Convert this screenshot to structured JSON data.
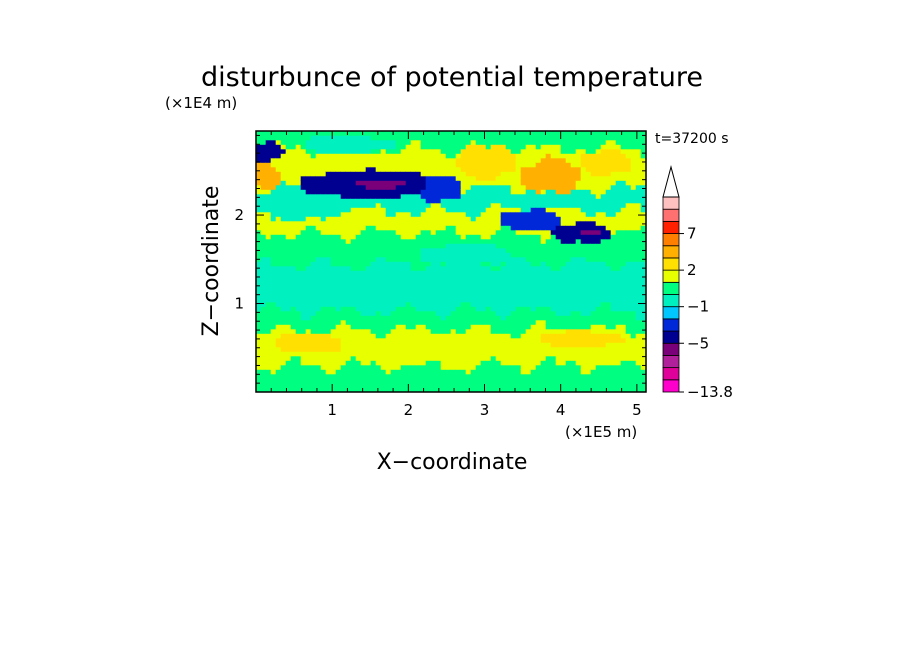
{
  "chart_data": {
    "type": "heatmap",
    "title": "disturbunce of potential temperature",
    "xlabel": "X−coordinate",
    "ylabel": "Z−coordinate",
    "x_unit": "(×1E5 m)",
    "y_unit": "(×1E4 m)",
    "time_label": "t=37200 s",
    "xlim": [
      0,
      5.12
    ],
    "ylim": [
      0,
      2.95
    ],
    "x_ticks": [
      "1",
      "2",
      "3",
      "4",
      "5"
    ],
    "x_tick_values": [
      1,
      2,
      3,
      4,
      5
    ],
    "y_ticks": [
      "1",
      "2"
    ],
    "y_tick_values": [
      1,
      2
    ],
    "colorbar": {
      "labels": [
        "7",
        "2",
        "−1",
        "−5",
        "−13.8"
      ],
      "levels": [
        -13.8,
        -11,
        -9,
        -7,
        -5,
        -3,
        -2,
        -1,
        0,
        1,
        2,
        3,
        5,
        7,
        9,
        11
      ],
      "colors": [
        "#ff00cc",
        "#e0009a",
        "#b0209a",
        "#7a007a",
        "#000090",
        "#0028d8",
        "#00c8ff",
        "#00f0c0",
        "#00ff80",
        "#e8ff00",
        "#ffe000",
        "#ffb000",
        "#ff8000",
        "#ff2000",
        "#ff7070",
        "#ffc0c0"
      ],
      "extend": "max"
    },
    "layers": [
      {
        "z": [
          0.0,
          0.3
        ],
        "value": 0.5
      },
      {
        "z": [
          0.3,
          0.7
        ],
        "value": 1.6
      },
      {
        "z": [
          0.7,
          0.92
        ],
        "value": 0.5
      },
      {
        "z": [
          0.92,
          1.45
        ],
        "value": -0.4
      },
      {
        "z": [
          1.45,
          1.8
        ],
        "value": 0.5
      },
      {
        "z": [
          1.8,
          2.05
        ],
        "value": 1.6
      },
      {
        "z": [
          2.05,
          2.3
        ],
        "value": -0.4
      },
      {
        "z": [
          2.3,
          2.75
        ],
        "value": 1.6
      },
      {
        "z": [
          2.75,
          2.95
        ],
        "value": 0.5
      }
    ],
    "features": [
      {
        "x": 1.5,
        "z": 2.35,
        "rx": 0.9,
        "rz": 0.16,
        "value": -4.2
      },
      {
        "x": 1.6,
        "z": 2.35,
        "rx": 0.55,
        "rz": 0.09,
        "value": -6.0
      },
      {
        "x": 0.15,
        "z": 2.72,
        "rx": 0.2,
        "rz": 0.12,
        "value": -4.2
      },
      {
        "x": 4.3,
        "z": 1.8,
        "rx": 0.4,
        "rz": 0.11,
        "value": -4.2
      },
      {
        "x": 4.4,
        "z": 1.8,
        "rx": 0.2,
        "rz": 0.06,
        "value": -6.0
      },
      {
        "x": 3.6,
        "z": 1.95,
        "rx": 0.4,
        "rz": 0.12,
        "value": -2.5
      },
      {
        "x": 0.1,
        "z": 2.45,
        "rx": 0.25,
        "rz": 0.14,
        "value": 4.0
      },
      {
        "x": 3.9,
        "z": 2.45,
        "rx": 0.4,
        "rz": 0.2,
        "value": 4.0
      },
      {
        "x": 4.6,
        "z": 2.6,
        "rx": 0.3,
        "rz": 0.15,
        "value": 2.5
      },
      {
        "x": 2.4,
        "z": 2.3,
        "rx": 0.3,
        "rz": 0.15,
        "value": -2.5
      },
      {
        "x": 1.2,
        "z": 2.8,
        "rx": 0.6,
        "rz": 0.1,
        "value": -0.4
      },
      {
        "x": 3.0,
        "z": 2.6,
        "rx": 0.4,
        "rz": 0.2,
        "value": 2.5
      },
      {
        "x": 0.6,
        "z": 2.05,
        "rx": 0.5,
        "rz": 0.1,
        "value": -0.4
      },
      {
        "x": 2.8,
        "z": 1.55,
        "rx": 0.6,
        "rz": 0.12,
        "value": -0.4
      },
      {
        "x": 0.7,
        "z": 0.55,
        "rx": 0.5,
        "rz": 0.1,
        "value": 2.5
      },
      {
        "x": 4.3,
        "z": 0.6,
        "rx": 0.5,
        "rz": 0.1,
        "value": 2.5
      }
    ]
  }
}
